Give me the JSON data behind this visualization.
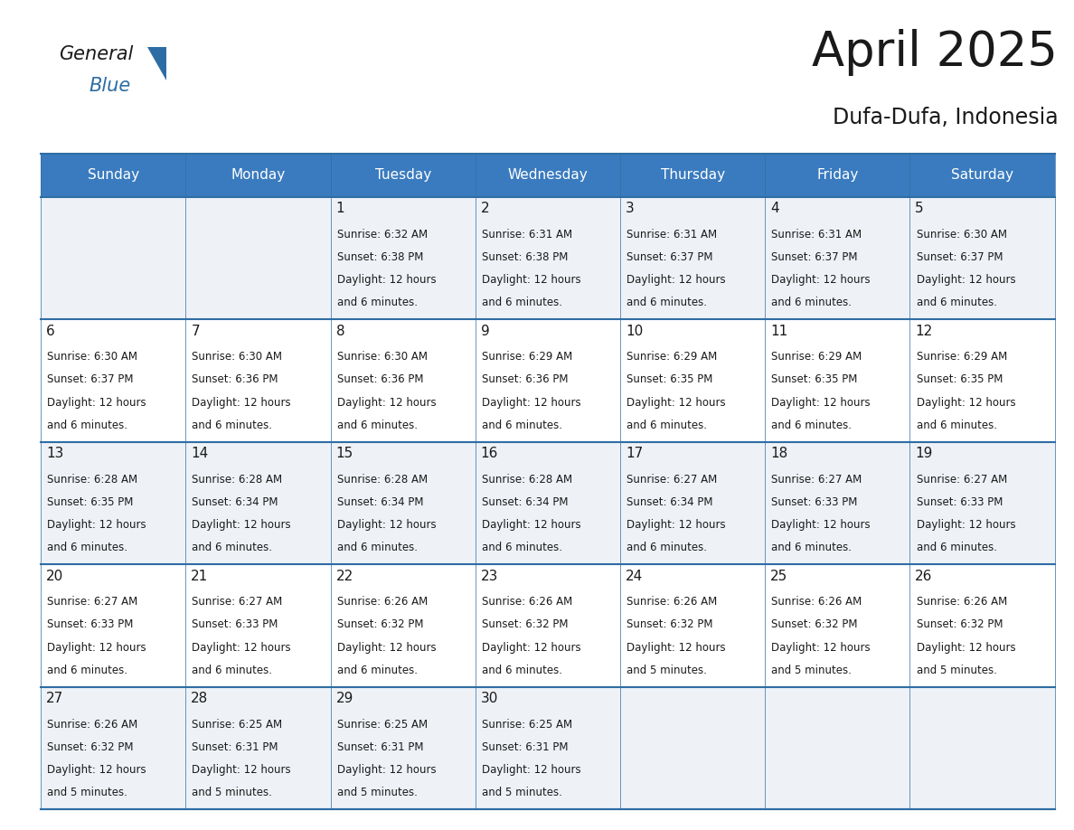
{
  "title": "April 2025",
  "subtitle": "Dufa-Dufa, Indonesia",
  "header_bg": "#3a7bbf",
  "header_text": "#ffffff",
  "row_bg_odd": "#eef2f7",
  "row_bg_even": "#ffffff",
  "border_color": "#2e6da4",
  "text_color": "#1a1a1a",
  "days_of_week": [
    "Sunday",
    "Monday",
    "Tuesday",
    "Wednesday",
    "Thursday",
    "Friday",
    "Saturday"
  ],
  "calendar_data": [
    [
      {
        "day": null,
        "sunrise": null,
        "sunset": null,
        "daylight": null
      },
      {
        "day": null,
        "sunrise": null,
        "sunset": null,
        "daylight": null
      },
      {
        "day": "1",
        "sunrise": "6:32 AM",
        "sunset": "6:38 PM",
        "daylight": "12 hours\nand 6 minutes."
      },
      {
        "day": "2",
        "sunrise": "6:31 AM",
        "sunset": "6:38 PM",
        "daylight": "12 hours\nand 6 minutes."
      },
      {
        "day": "3",
        "sunrise": "6:31 AM",
        "sunset": "6:37 PM",
        "daylight": "12 hours\nand 6 minutes."
      },
      {
        "day": "4",
        "sunrise": "6:31 AM",
        "sunset": "6:37 PM",
        "daylight": "12 hours\nand 6 minutes."
      },
      {
        "day": "5",
        "sunrise": "6:30 AM",
        "sunset": "6:37 PM",
        "daylight": "12 hours\nand 6 minutes."
      }
    ],
    [
      {
        "day": "6",
        "sunrise": "6:30 AM",
        "sunset": "6:37 PM",
        "daylight": "12 hours\nand 6 minutes."
      },
      {
        "day": "7",
        "sunrise": "6:30 AM",
        "sunset": "6:36 PM",
        "daylight": "12 hours\nand 6 minutes."
      },
      {
        "day": "8",
        "sunrise": "6:30 AM",
        "sunset": "6:36 PM",
        "daylight": "12 hours\nand 6 minutes."
      },
      {
        "day": "9",
        "sunrise": "6:29 AM",
        "sunset": "6:36 PM",
        "daylight": "12 hours\nand 6 minutes."
      },
      {
        "day": "10",
        "sunrise": "6:29 AM",
        "sunset": "6:35 PM",
        "daylight": "12 hours\nand 6 minutes."
      },
      {
        "day": "11",
        "sunrise": "6:29 AM",
        "sunset": "6:35 PM",
        "daylight": "12 hours\nand 6 minutes."
      },
      {
        "day": "12",
        "sunrise": "6:29 AM",
        "sunset": "6:35 PM",
        "daylight": "12 hours\nand 6 minutes."
      }
    ],
    [
      {
        "day": "13",
        "sunrise": "6:28 AM",
        "sunset": "6:35 PM",
        "daylight": "12 hours\nand 6 minutes."
      },
      {
        "day": "14",
        "sunrise": "6:28 AM",
        "sunset": "6:34 PM",
        "daylight": "12 hours\nand 6 minutes."
      },
      {
        "day": "15",
        "sunrise": "6:28 AM",
        "sunset": "6:34 PM",
        "daylight": "12 hours\nand 6 minutes."
      },
      {
        "day": "16",
        "sunrise": "6:28 AM",
        "sunset": "6:34 PM",
        "daylight": "12 hours\nand 6 minutes."
      },
      {
        "day": "17",
        "sunrise": "6:27 AM",
        "sunset": "6:34 PM",
        "daylight": "12 hours\nand 6 minutes."
      },
      {
        "day": "18",
        "sunrise": "6:27 AM",
        "sunset": "6:33 PM",
        "daylight": "12 hours\nand 6 minutes."
      },
      {
        "day": "19",
        "sunrise": "6:27 AM",
        "sunset": "6:33 PM",
        "daylight": "12 hours\nand 6 minutes."
      }
    ],
    [
      {
        "day": "20",
        "sunrise": "6:27 AM",
        "sunset": "6:33 PM",
        "daylight": "12 hours\nand 6 minutes."
      },
      {
        "day": "21",
        "sunrise": "6:27 AM",
        "sunset": "6:33 PM",
        "daylight": "12 hours\nand 6 minutes."
      },
      {
        "day": "22",
        "sunrise": "6:26 AM",
        "sunset": "6:32 PM",
        "daylight": "12 hours\nand 6 minutes."
      },
      {
        "day": "23",
        "sunrise": "6:26 AM",
        "sunset": "6:32 PM",
        "daylight": "12 hours\nand 6 minutes."
      },
      {
        "day": "24",
        "sunrise": "6:26 AM",
        "sunset": "6:32 PM",
        "daylight": "12 hours\nand 5 minutes."
      },
      {
        "day": "25",
        "sunrise": "6:26 AM",
        "sunset": "6:32 PM",
        "daylight": "12 hours\nand 5 minutes."
      },
      {
        "day": "26",
        "sunrise": "6:26 AM",
        "sunset": "6:32 PM",
        "daylight": "12 hours\nand 5 minutes."
      }
    ],
    [
      {
        "day": "27",
        "sunrise": "6:26 AM",
        "sunset": "6:32 PM",
        "daylight": "12 hours\nand 5 minutes."
      },
      {
        "day": "28",
        "sunrise": "6:25 AM",
        "sunset": "6:31 PM",
        "daylight": "12 hours\nand 5 minutes."
      },
      {
        "day": "29",
        "sunrise": "6:25 AM",
        "sunset": "6:31 PM",
        "daylight": "12 hours\nand 5 minutes."
      },
      {
        "day": "30",
        "sunrise": "6:25 AM",
        "sunset": "6:31 PM",
        "daylight": "12 hours\nand 5 minutes."
      },
      {
        "day": null,
        "sunrise": null,
        "sunset": null,
        "daylight": null
      },
      {
        "day": null,
        "sunrise": null,
        "sunset": null,
        "daylight": null
      },
      {
        "day": null,
        "sunrise": null,
        "sunset": null,
        "daylight": null
      }
    ]
  ],
  "logo_text_general": "General",
  "logo_text_blue": "Blue",
  "logo_color_general": "#1a1a1a",
  "logo_color_blue": "#2e6da4",
  "logo_triangle_color": "#2e6da4",
  "title_fontsize": 38,
  "subtitle_fontsize": 17,
  "header_fontsize": 11,
  "day_num_fontsize": 11,
  "cell_text_fontsize": 8.5
}
